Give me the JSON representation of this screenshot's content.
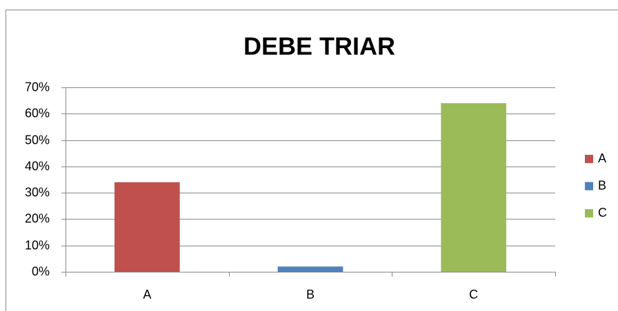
{
  "chart_data": {
    "type": "bar",
    "title": "DEBE TRIAR",
    "categories": [
      "A",
      "B",
      "C"
    ],
    "values": [
      34,
      2,
      64
    ],
    "colors": [
      "#c0504d",
      "#4f81bd",
      "#9bbb59"
    ],
    "ylim": [
      0,
      70
    ],
    "yticks": [
      {
        "value": 0,
        "label": "0%"
      },
      {
        "value": 10,
        "label": "10%"
      },
      {
        "value": 20,
        "label": "20%"
      },
      {
        "value": 30,
        "label": "30%"
      },
      {
        "value": 40,
        "label": "40%"
      },
      {
        "value": 50,
        "label": "50%"
      },
      {
        "value": 60,
        "label": "60%"
      },
      {
        "value": 70,
        "label": "70%"
      }
    ],
    "grid": true,
    "legend": "right"
  }
}
